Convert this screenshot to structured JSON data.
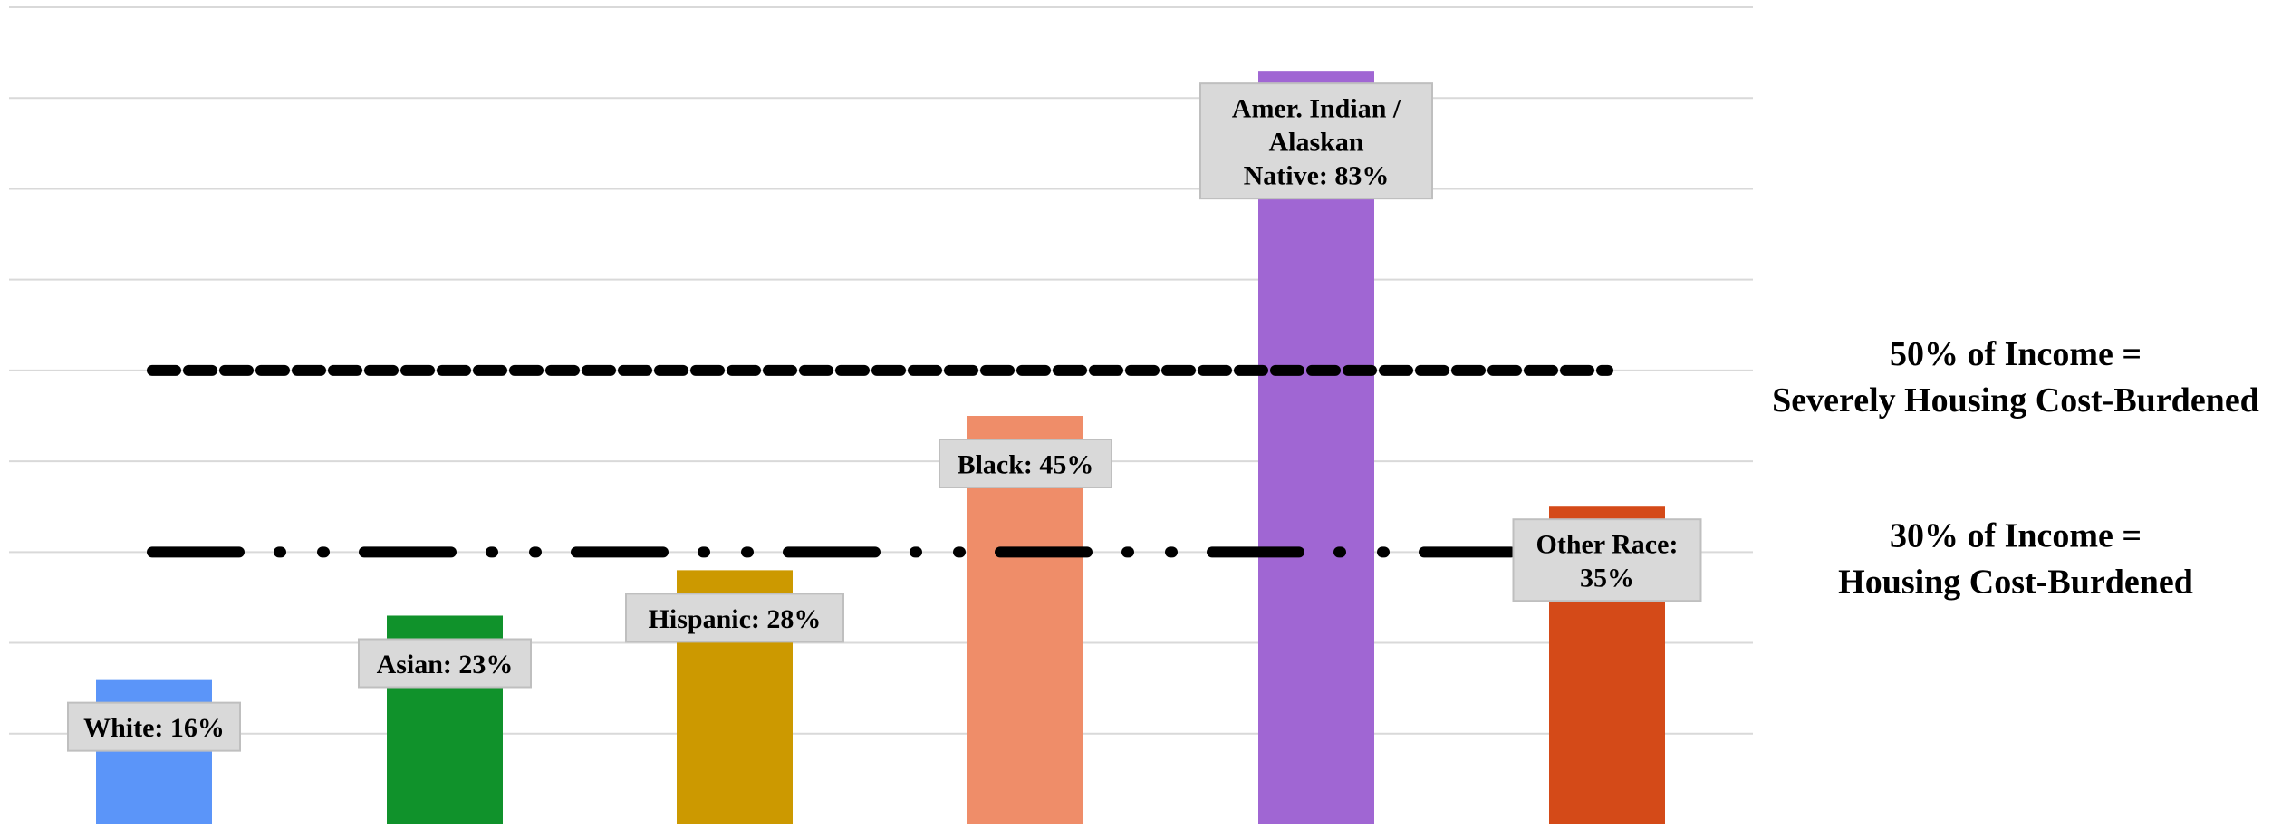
{
  "chart_data": {
    "type": "bar",
    "categories": [
      "White",
      "Asian",
      "Hispanic",
      "Black",
      "Amer. Indian / Alaskan Native",
      "Other Race"
    ],
    "values": [
      16,
      23,
      28,
      45,
      83,
      35
    ],
    "data_labels": [
      [
        "White: 16%"
      ],
      [
        "Asian: 23%"
      ],
      [
        "Hispanic: 28%"
      ],
      [
        "Black: 45%"
      ],
      [
        "Amer. Indian /",
        "Alaskan",
        "Native: 83%"
      ],
      [
        "Other Race:",
        "35%"
      ]
    ],
    "colors": [
      "#5b95f9",
      "#10922b",
      "#cc9900",
      "#ef8d69",
      "#a066d3",
      "#d44a18"
    ],
    "ylim": [
      0,
      90
    ],
    "grid": true,
    "reference_lines": [
      {
        "value": 50,
        "style": "dashed",
        "label": [
          "50% of Income =",
          "Severely Housing Cost-Burdened"
        ]
      },
      {
        "value": 30,
        "style": "dash-dot-dot",
        "label": [
          "30% of Income =",
          "Housing Cost-Burdened"
        ]
      }
    ]
  }
}
